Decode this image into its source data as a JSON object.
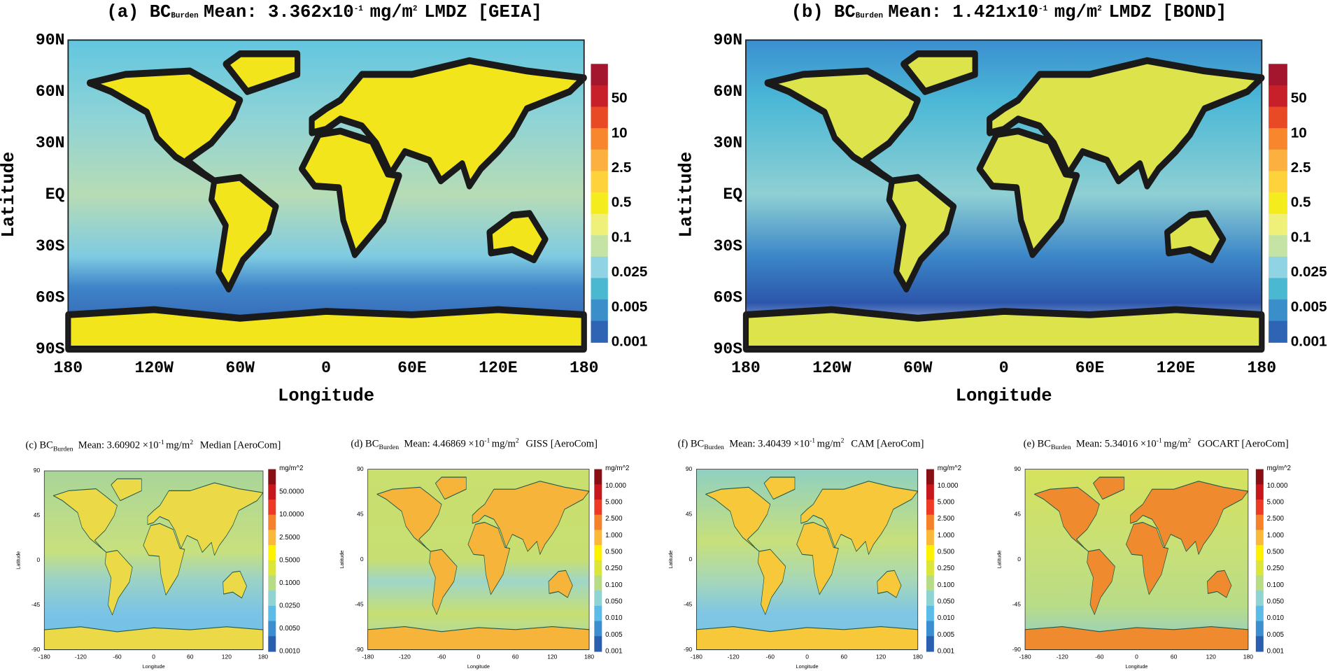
{
  "panels": [
    {
      "title": {
        "label": "(a) BC",
        "subscript": "Burden",
        "text": "Mean: 3.362x10",
        "superscript": "-1",
        "unit": "mg/m",
        "unit_superscript": "2",
        "suffix": "LMDZ [GEIA]"
      },
      "y_axis_label": "Latitude",
      "x_axis_label": "Longitude",
      "y_ticks": [
        "90N",
        "60N",
        "30N",
        "EQ",
        "30S",
        "60S",
        "90S"
      ],
      "x_ticks": [
        "180",
        "120W",
        "60W",
        "0",
        "60E",
        "120E",
        "180"
      ],
      "colorbar_labels": [
        "50",
        "10",
        "2.5",
        "0.5",
        "0.1",
        "0.025",
        "0.005",
        "0.001"
      ]
    },
    {
      "title": {
        "label": "(b) BC",
        "subscript": "Burden",
        "text": "Mean: 1.421x10",
        "superscript": "-1",
        "unit": "mg/m",
        "unit_superscript": "2",
        "suffix": "LMDZ [BOND]"
      },
      "y_axis_label": "Latitude",
      "x_axis_label": "Longitude",
      "y_ticks": [
        "90N",
        "60N",
        "30N",
        "EQ",
        "30S",
        "60S",
        "90S"
      ],
      "x_ticks": [
        "180",
        "120W",
        "60W",
        "0",
        "60E",
        "120E",
        "180"
      ],
      "colorbar_labels": [
        "50",
        "10",
        "2.5",
        "0.5",
        "0.1",
        "0.025",
        "0.005",
        "0.001"
      ]
    },
    {
      "title": {
        "label": "(c) BC",
        "subscript": "Burden",
        "text": "Mean: 3.60902 ×10",
        "superscript": "-1",
        "unit": "mg/m",
        "unit_superscript": "2",
        "suffix": "Median  [AeroCom]"
      },
      "y_axis_label": "Latitude",
      "x_axis_label": "Longitude",
      "y_ticks": [
        "90",
        "45",
        "0",
        "-45",
        "-90"
      ],
      "x_ticks": [
        "-180",
        "-120",
        "-60",
        "0",
        "60",
        "120",
        "180"
      ],
      "colorbar_title": "mg/m^2",
      "colorbar_labels": [
        "50.0000",
        "10.0000",
        "2.5000",
        "0.5000",
        "0.1000",
        "0.0250",
        "0.0050",
        "0.0010"
      ]
    },
    {
      "title": {
        "label": "(d) BC",
        "subscript": "Burden",
        "text": "Mean: 4.46869 ×10",
        "superscript": "-1",
        "unit": "mg/m",
        "unit_superscript": "2",
        "suffix": "GISS  [AeroCom]"
      },
      "y_axis_label": "Latitude",
      "x_axis_label": "Longitude",
      "y_ticks": [
        "90",
        "45",
        "0",
        "-45",
        "-90"
      ],
      "x_ticks": [
        "-180",
        "-120",
        "-60",
        "0",
        "60",
        "120",
        "180"
      ],
      "colorbar_title": "mg/m^2",
      "colorbar_labels": [
        "10.000",
        "5.000",
        "2.500",
        "1.000",
        "0.500",
        "0.250",
        "0.100",
        "0.050",
        "0.010",
        "0.005",
        "0.001"
      ]
    },
    {
      "title": {
        "label": "(f) BC",
        "subscript": "Burden",
        "text": "Mean: 3.40439 ×10",
        "superscript": "-1",
        "unit": "mg/m",
        "unit_superscript": "2",
        "suffix": "CAM   [AeroCom]"
      },
      "y_axis_label": "Latitude",
      "x_axis_label": "Longitude",
      "y_ticks": [
        "90",
        "45",
        "0",
        "-45",
        "-90"
      ],
      "x_ticks": [
        "-180",
        "-120",
        "-60",
        "0",
        "60",
        "120",
        "180"
      ],
      "colorbar_title": "mg/m^2",
      "colorbar_labels": [
        "10.000",
        "5.000",
        "2.500",
        "1.000",
        "0.500",
        "0.250",
        "0.100",
        "0.050",
        "0.010",
        "0.005",
        "0.001"
      ]
    },
    {
      "title": {
        "label": "(e) BC",
        "subscript": "Burden",
        "text": "Mean: 5.34016 ×10",
        "superscript": "-1",
        "unit": "mg/m",
        "unit_superscript": "2",
        "suffix": "GOCART [AeroCom]"
      },
      "y_axis_label": "Latitude",
      "x_axis_label": "Longitude",
      "y_ticks": [
        "90",
        "45",
        "0",
        "-45",
        "-90"
      ],
      "x_ticks": [
        "-180",
        "-120",
        "-60",
        "0",
        "60",
        "120",
        "180"
      ],
      "colorbar_title": "mg/m^2",
      "colorbar_labels": [
        "10.000",
        "5.000",
        "2.500",
        "1.000",
        "0.500",
        "0.250",
        "0.100",
        "0.050",
        "0.010",
        "0.005",
        "0.001"
      ]
    }
  ]
}
